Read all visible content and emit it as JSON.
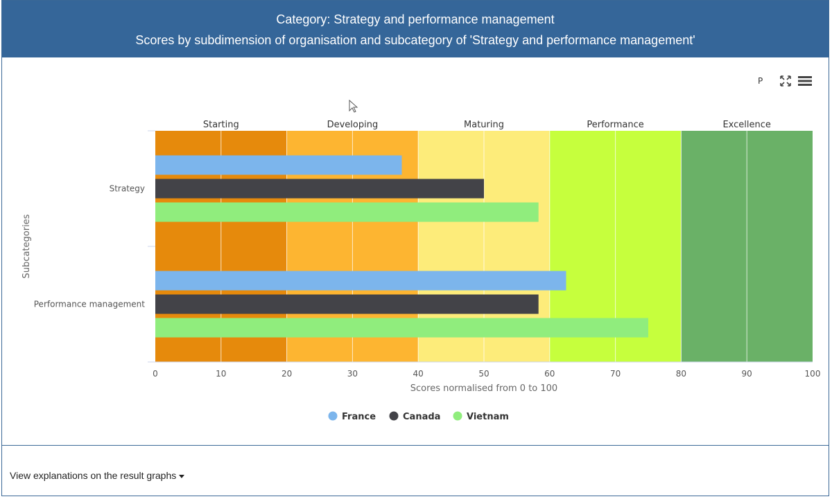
{
  "header": {
    "title_line1": "Category: Strategy and performance management",
    "title_line2": "Scores by subdimension of organisation and subcategory of 'Strategy and performance management'"
  },
  "toolbar": {
    "label_p": "P",
    "expand_icon": "expand-icon",
    "menu_icon": "hamburger-menu-icon"
  },
  "footer": {
    "explain_link": "View explanations on the result graphs"
  },
  "chart_data": {
    "type": "bar",
    "orientation": "horizontal",
    "categories": [
      "Strategy",
      "Performance management"
    ],
    "series": [
      {
        "name": "France",
        "color": "#7cb5ec",
        "values": [
          37.5,
          62.5
        ]
      },
      {
        "name": "Canada",
        "color": "#434348",
        "values": [
          50,
          58.3
        ]
      },
      {
        "name": "Vietnam",
        "color": "#90ed7d",
        "values": [
          58.3,
          75
        ]
      }
    ],
    "bands": [
      {
        "label": "Starting",
        "from": 0,
        "to": 20,
        "color": "#e68a0c"
      },
      {
        "label": "Developing",
        "from": 20,
        "to": 40,
        "color": "#fdb531"
      },
      {
        "label": "Maturing",
        "from": 40,
        "to": 60,
        "color": "#fdec7a"
      },
      {
        "label": "Performance",
        "from": 60,
        "to": 80,
        "color": "#c6ff3d"
      },
      {
        "label": "Excellence",
        "from": 80,
        "to": 100,
        "color": "#6ab167"
      }
    ],
    "xlim": [
      0,
      100
    ],
    "xticks": [
      0,
      10,
      20,
      30,
      40,
      50,
      60,
      70,
      80,
      90,
      100
    ],
    "xlabel": "Scores normalised from 0 to 100",
    "ylabel": "Subcategories",
    "grid": true,
    "legend_position": "bottom-center"
  }
}
